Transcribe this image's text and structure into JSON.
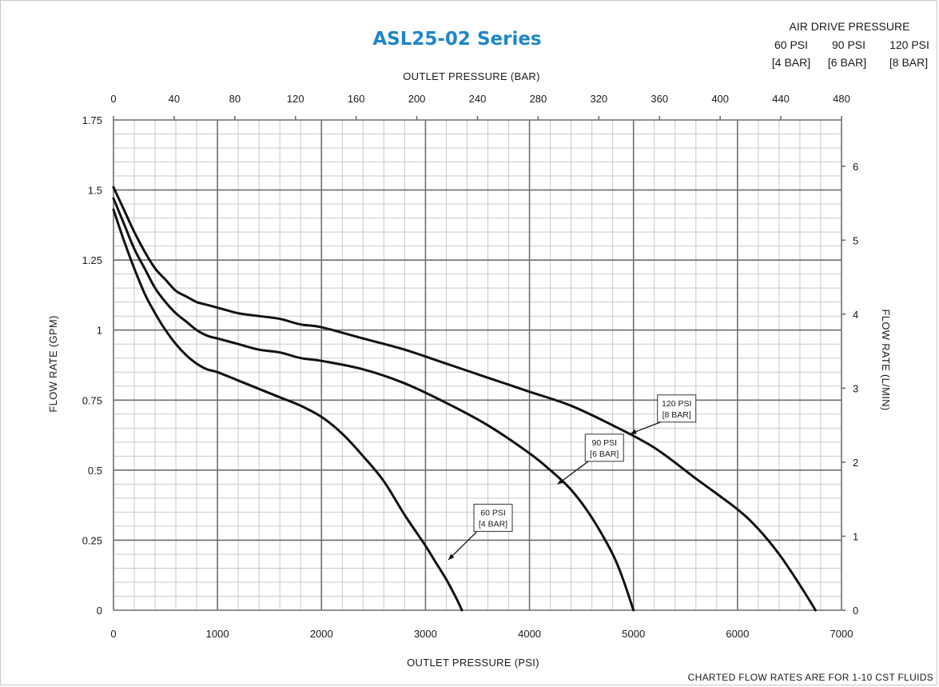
{
  "chart_data": {
    "type": "line",
    "title": "ASL25-02 Series",
    "xlabel": "OUTLET PRESSURE (PSI)",
    "x2label": "OUTLET PRESSURE (BAR)",
    "ylabel": "FLOW RATE (GPM)",
    "y2label": "FLOW RATE (L/MIN)",
    "xlim": [
      0,
      7000
    ],
    "ylim": [
      0,
      1.75
    ],
    "x2lim": [
      0,
      480
    ],
    "y2lim": [
      0,
      6
    ],
    "x_ticks": [
      "0",
      "1000",
      "2000",
      "3000",
      "4000",
      "5000",
      "6000",
      "7000"
    ],
    "y_ticks": [
      "0",
      "0.25",
      "0.5",
      "0.75",
      "1",
      "1.25",
      "1.5",
      "1.75"
    ],
    "x2_ticks": [
      "0",
      "40",
      "80",
      "120",
      "160",
      "200",
      "240",
      "280",
      "320",
      "360",
      "400",
      "440",
      "480"
    ],
    "y2_ticks": [
      "0",
      "1",
      "2",
      "3",
      "4",
      "5",
      "6"
    ],
    "grid": true,
    "legend": {
      "title": "AIR DRIVE PRESSURE",
      "placement": "top-right",
      "items": [
        {
          "psi": "60 PSI",
          "bar": "[4 BAR]"
        },
        {
          "psi": "90 PSI",
          "bar": "[6 BAR]"
        },
        {
          "psi": "120 PSI",
          "bar": "[8 BAR]"
        }
      ]
    },
    "footnote": "CHARTED FLOW RATES ARE FOR 1-10 CST FLUIDS",
    "series": [
      {
        "psi": "60 PSI",
        "bar": "[4 BAR]",
        "x": [
          0,
          100,
          200,
          300,
          400,
          500,
          600,
          700,
          800,
          900,
          1000,
          1200,
          1400,
          1600,
          1800,
          2000,
          2200,
          2400,
          2600,
          2800,
          3000,
          3100,
          3200,
          3300,
          3350
        ],
        "y": [
          1.43,
          1.32,
          1.22,
          1.13,
          1.06,
          1.0,
          0.95,
          0.91,
          0.88,
          0.86,
          0.85,
          0.82,
          0.79,
          0.76,
          0.73,
          0.69,
          0.63,
          0.55,
          0.46,
          0.34,
          0.23,
          0.17,
          0.11,
          0.04,
          0.0
        ],
        "callout": {
          "x": 3220,
          "y": 0.18,
          "box_x": 3650,
          "box_y": 0.33
        }
      },
      {
        "psi": "90 PSI",
        "bar": "[6 BAR]",
        "x": [
          0,
          100,
          200,
          300,
          400,
          500,
          600,
          700,
          800,
          900,
          1000,
          1200,
          1400,
          1600,
          1800,
          2000,
          2400,
          2800,
          3200,
          3600,
          4000,
          4200,
          4400,
          4600,
          4800,
          4900,
          5000
        ],
        "y": [
          1.47,
          1.38,
          1.29,
          1.22,
          1.15,
          1.1,
          1.06,
          1.03,
          1.0,
          0.98,
          0.97,
          0.95,
          0.93,
          0.92,
          0.9,
          0.89,
          0.86,
          0.81,
          0.74,
          0.66,
          0.56,
          0.5,
          0.43,
          0.33,
          0.2,
          0.11,
          0.0
        ],
        "callout": {
          "x": 4270,
          "y": 0.45,
          "box_x": 4720,
          "box_y": 0.58
        }
      },
      {
        "psi": "120 PSI",
        "bar": "[8 BAR]",
        "x": [
          0,
          100,
          200,
          300,
          400,
          500,
          600,
          700,
          800,
          900,
          1000,
          1200,
          1400,
          1600,
          1800,
          2000,
          2400,
          2800,
          3200,
          3600,
          4000,
          4400,
          4800,
          5200,
          5600,
          6000,
          6200,
          6400,
          6600,
          6750
        ],
        "y": [
          1.51,
          1.43,
          1.35,
          1.28,
          1.22,
          1.18,
          1.14,
          1.12,
          1.1,
          1.09,
          1.08,
          1.06,
          1.05,
          1.04,
          1.02,
          1.01,
          0.97,
          0.93,
          0.88,
          0.83,
          0.78,
          0.73,
          0.66,
          0.58,
          0.47,
          0.36,
          0.29,
          0.2,
          0.09,
          0.0
        ],
        "callout": {
          "x": 4970,
          "y": 0.63,
          "box_x": 5415,
          "box_y": 0.72
        }
      }
    ]
  }
}
